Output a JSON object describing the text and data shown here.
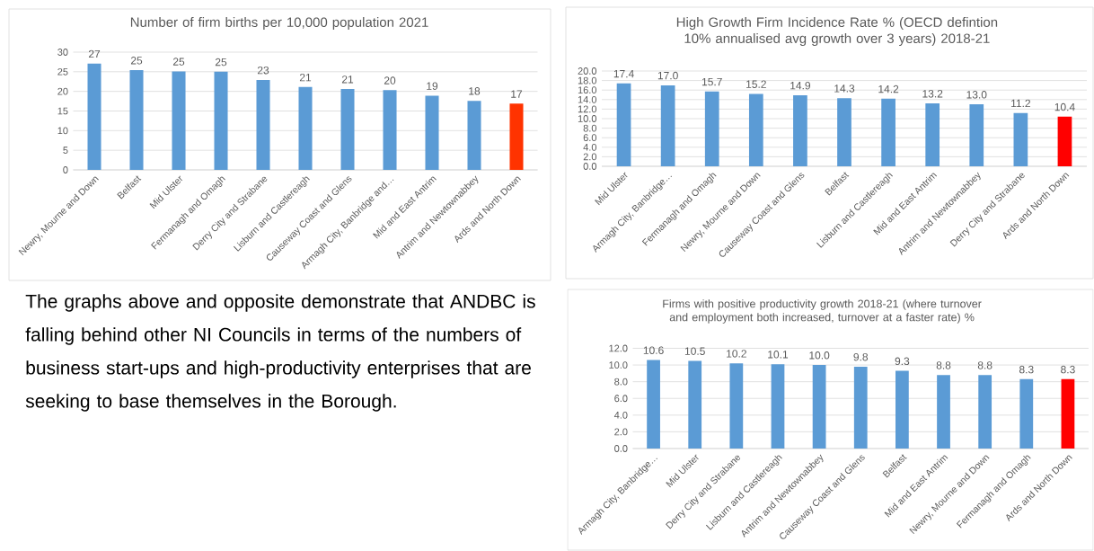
{
  "chart_data": [
    {
      "type": "bar",
      "title": "Number of firm births per 10,000 population 2021",
      "categories": [
        "Newry, Mourne and Down",
        "Belfast",
        "Mid Ulster",
        "Fermanagh and Omagh",
        "Derry City and Strabane",
        "Lisburn and Castlereagh",
        "Causeway Coast and Glens",
        "Armagh City, Banbridge and…",
        "Mid and East Antrim",
        "Antrim and Newtownabbey",
        "Ards and North Down"
      ],
      "values": [
        27.1,
        25.4,
        25.1,
        25.0,
        22.9,
        21.1,
        20.6,
        20.3,
        18.9,
        17.6,
        16.9
      ],
      "value_labels": [
        "27",
        "25",
        "25",
        "25",
        "23",
        "21",
        "21",
        "20",
        "19",
        "18",
        "17"
      ],
      "colors": [
        "#5b9bd5",
        "#5b9bd5",
        "#5b9bd5",
        "#5b9bd5",
        "#5b9bd5",
        "#5b9bd5",
        "#5b9bd5",
        "#5b9bd5",
        "#5b9bd5",
        "#5b9bd5",
        "#ff3300"
      ],
      "ylim": [
        0,
        30
      ],
      "yticks": [
        0,
        5,
        10,
        15,
        20,
        25,
        30
      ],
      "grid": "y"
    },
    {
      "type": "bar",
      "title": "High Growth Firm Incidence Rate % (OECD defintion 10% annualised avg growth over 3 years) 2018-21",
      "categories": [
        "Mid Ulster",
        "Armagh City, Banbridge…",
        "Fermanagh and Omagh",
        "Newry, Mourne and Down",
        "Causeway Coast and Glens",
        "Belfast",
        "Lisburn and Castlereagh",
        "Mid and East Antrim",
        "Antrim and Newtownabbey",
        "Derry City and Strabane",
        "Ards and North Down"
      ],
      "values": [
        17.4,
        17.0,
        15.7,
        15.2,
        14.9,
        14.3,
        14.2,
        13.2,
        13.0,
        11.2,
        10.4
      ],
      "value_labels": [
        "17.4",
        "17.0",
        "15.7",
        "15.2",
        "14.9",
        "14.3",
        "14.2",
        "13.2",
        "13.0",
        "11.2",
        "10.4"
      ],
      "colors": [
        "#5b9bd5",
        "#5b9bd5",
        "#5b9bd5",
        "#5b9bd5",
        "#5b9bd5",
        "#5b9bd5",
        "#5b9bd5",
        "#5b9bd5",
        "#5b9bd5",
        "#5b9bd5",
        "#ff0000"
      ],
      "ylim": [
        0,
        20
      ],
      "yticks": [
        {
          "value": 0,
          "label": "0.0"
        },
        {
          "value": 2,
          "label": "2.0"
        },
        {
          "value": 4,
          "label": "4.0"
        },
        {
          "value": 6,
          "label": "6.0"
        },
        {
          "value": 8,
          "label": "8.0"
        },
        {
          "value": 10,
          "label": "10.0"
        },
        {
          "value": 12,
          "label": "12.0"
        },
        {
          "value": 14,
          "label": "14.0"
        },
        {
          "value": 16,
          "label": "16.0"
        },
        {
          "value": 18,
          "label": "18.0"
        },
        {
          "value": 20,
          "label": "20.0"
        }
      ],
      "grid": "y"
    },
    {
      "type": "other",
      "annotations": [
        "The graphs above and opposite demonstrate that ANDBC is falling behind other NI Councils in terms of the numbers of business start-ups and high-productivity enterprises that are seeking to base themselves in the Borough."
      ]
    },
    {
      "type": "bar",
      "title": "Firms with positive productivity growth 2018-21 (where turnover and employment both increased, turnover at a faster rate) %",
      "categories": [
        "Armagh City, Banbridge…",
        "Mid Ulster",
        "Derry City and Strabane",
        "Lisburn and Castlereagh",
        "Antrim and Newtownabbey",
        "Causeway Coast and Glens",
        "Belfast",
        "Mid and East Antrim",
        "Newry, Mourne and Down",
        "Fermanagh and Omagh",
        "Ards and North Down"
      ],
      "values": [
        10.6,
        10.5,
        10.2,
        10.1,
        10.0,
        9.8,
        9.3,
        8.8,
        8.8,
        8.3,
        8.3
      ],
      "value_labels": [
        "10.6",
        "10.5",
        "10.2",
        "10.1",
        "10.0",
        "9.8",
        "9.3",
        "8.8",
        "8.8",
        "8.3",
        "8.3"
      ],
      "colors": [
        "#5b9bd5",
        "#5b9bd5",
        "#5b9bd5",
        "#5b9bd5",
        "#5b9bd5",
        "#5b9bd5",
        "#5b9bd5",
        "#5b9bd5",
        "#5b9bd5",
        "#5b9bd5",
        "#ff0000"
      ],
      "ylim": [
        0,
        12
      ],
      "yticks": [
        {
          "value": 0,
          "label": "0.0"
        },
        {
          "value": 2,
          "label": "2.0"
        },
        {
          "value": 4,
          "label": "4.0"
        },
        {
          "value": 6,
          "label": "6.0"
        },
        {
          "value": 8,
          "label": "8.0"
        },
        {
          "value": 10,
          "label": "10.0"
        },
        {
          "value": 12,
          "label": "12.0"
        }
      ],
      "grid": "y"
    }
  ]
}
